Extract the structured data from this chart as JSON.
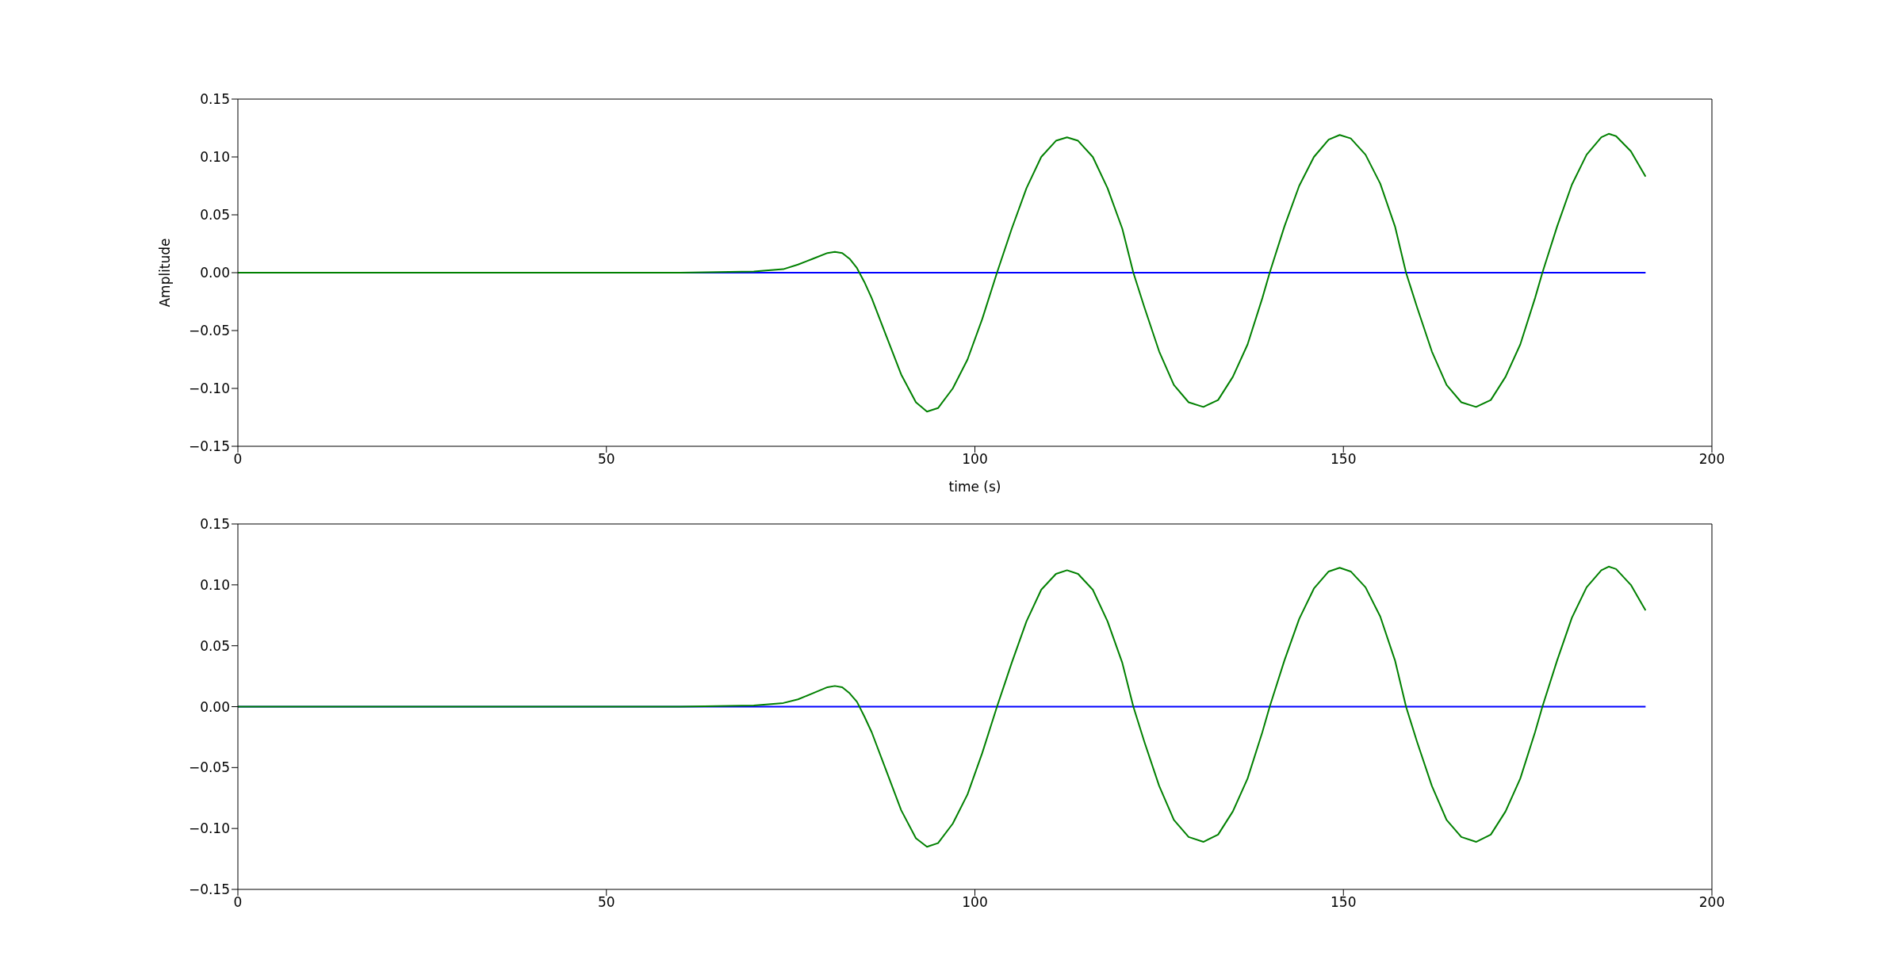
{
  "chart_data": [
    {
      "type": "line",
      "xlabel": "time (s)",
      "ylabel": "Amplitude",
      "xlim": [
        0,
        200
      ],
      "xticks": [
        0,
        50,
        100,
        150,
        200
      ],
      "ylim": [
        -0.15,
        0.15
      ],
      "yticks": [
        {
          "value": -0.15,
          "label": "−0.15"
        },
        {
          "value": -0.1,
          "label": "−0.10"
        },
        {
          "value": -0.05,
          "label": "−0.05"
        },
        {
          "value": 0,
          "label": "0.00"
        },
        {
          "value": 0.05,
          "label": "0.05"
        },
        {
          "value": 0.1,
          "label": "0.10"
        },
        {
          "value": 0.15,
          "label": "0.15"
        }
      ],
      "series": [
        {
          "color": "#0000ff",
          "x": [
            0,
            191
          ],
          "values": [
            0,
            0
          ]
        },
        {
          "color": "#008000",
          "x": [
            0,
            10,
            20,
            30,
            40,
            50,
            60,
            70,
            74,
            76,
            78,
            80,
            81,
            82,
            83,
            84,
            85,
            86,
            88,
            90,
            92,
            93.5,
            95,
            97,
            99,
            101,
            103,
            105,
            107,
            109,
            111,
            112.5,
            114,
            116,
            118,
            120,
            121.5,
            123,
            125,
            127,
            129,
            131,
            133,
            135,
            137,
            139,
            140,
            142,
            144,
            146,
            148,
            149.5,
            151,
            153,
            155,
            157,
            158.5,
            160,
            162,
            164,
            166,
            168,
            170,
            172,
            174,
            176,
            177,
            179,
            181,
            183,
            185,
            186,
            187,
            189,
            191
          ],
          "values": [
            0,
            0,
            0,
            0,
            0,
            0,
            0,
            0.001,
            0.003,
            0.007,
            0.012,
            0.017,
            0.018,
            0.017,
            0.012,
            0.004,
            -0.008,
            -0.022,
            -0.055,
            -0.088,
            -0.112,
            -0.12,
            -0.117,
            -0.1,
            -0.075,
            -0.04,
            0,
            0.038,
            0.073,
            0.1,
            0.114,
            0.117,
            0.114,
            0.1,
            0.073,
            0.038,
            0,
            -0.03,
            -0.068,
            -0.097,
            -0.112,
            -0.116,
            -0.11,
            -0.09,
            -0.062,
            -0.022,
            0,
            0.04,
            0.075,
            0.1,
            0.115,
            0.119,
            0.116,
            0.102,
            0.077,
            0.04,
            0,
            -0.03,
            -0.068,
            -0.097,
            -0.112,
            -0.116,
            -0.11,
            -0.09,
            -0.062,
            -0.022,
            0,
            0.04,
            0.076,
            0.102,
            0.117,
            0.12,
            0.118,
            0.105,
            0.083
          ]
        }
      ]
    },
    {
      "type": "line",
      "xlim": [
        0,
        200
      ],
      "xticks": [
        0,
        50,
        100,
        150,
        200
      ],
      "ylim": [
        -0.15,
        0.15
      ],
      "yticks": [
        {
          "value": -0.15,
          "label": "−0.15"
        },
        {
          "value": -0.1,
          "label": "−0.10"
        },
        {
          "value": -0.05,
          "label": "−0.05"
        },
        {
          "value": 0,
          "label": "0.00"
        },
        {
          "value": 0.05,
          "label": "0.05"
        },
        {
          "value": 0.1,
          "label": "0.10"
        },
        {
          "value": 0.15,
          "label": "0.15"
        }
      ],
      "series": [
        {
          "color": "#0000ff",
          "x": [
            0,
            191
          ],
          "values": [
            0,
            0
          ]
        },
        {
          "color": "#008000",
          "x": [
            0,
            10,
            20,
            30,
            40,
            50,
            60,
            70,
            74,
            76,
            78,
            80,
            81,
            82,
            83,
            84,
            85,
            86,
            88,
            90,
            92,
            93.5,
            95,
            97,
            99,
            101,
            103,
            105,
            107,
            109,
            111,
            112.5,
            114,
            116,
            118,
            120,
            121.5,
            123,
            125,
            127,
            129,
            131,
            133,
            135,
            137,
            139,
            140,
            142,
            144,
            146,
            148,
            149.5,
            151,
            153,
            155,
            157,
            158.5,
            160,
            162,
            164,
            166,
            168,
            170,
            172,
            174,
            176,
            177,
            179,
            181,
            183,
            185,
            186,
            187,
            189,
            191
          ],
          "values": [
            0,
            0,
            0,
            0,
            0,
            0,
            0,
            0.001,
            0.003,
            0.006,
            0.011,
            0.016,
            0.017,
            0.016,
            0.011,
            0.004,
            -0.008,
            -0.021,
            -0.053,
            -0.085,
            -0.108,
            -0.115,
            -0.112,
            -0.096,
            -0.072,
            -0.038,
            0,
            0.036,
            0.07,
            0.096,
            0.109,
            0.112,
            0.109,
            0.096,
            0.07,
            0.036,
            0,
            -0.029,
            -0.065,
            -0.093,
            -0.107,
            -0.111,
            -0.105,
            -0.086,
            -0.059,
            -0.021,
            0,
            0.038,
            0.072,
            0.097,
            0.111,
            0.114,
            0.111,
            0.098,
            0.074,
            0.038,
            0,
            -0.029,
            -0.065,
            -0.093,
            -0.107,
            -0.111,
            -0.105,
            -0.086,
            -0.059,
            -0.021,
            0,
            0.038,
            0.073,
            0.098,
            0.112,
            0.115,
            0.113,
            0.1,
            0.079
          ]
        }
      ]
    }
  ]
}
